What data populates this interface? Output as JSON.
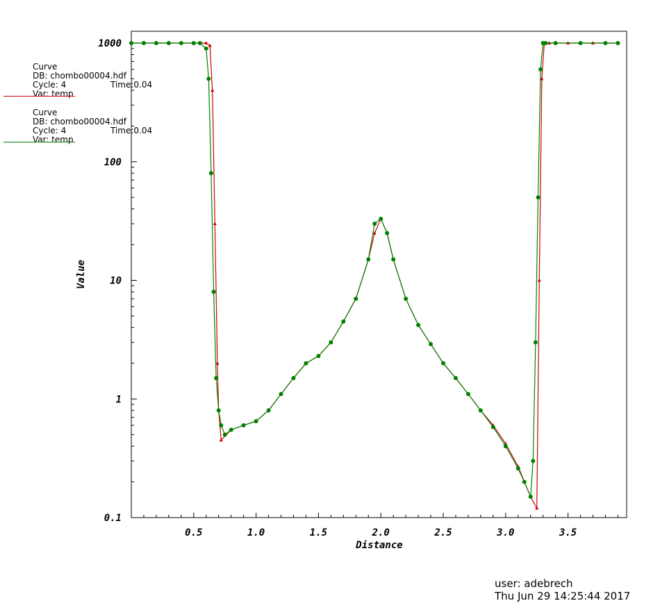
{
  "legend": [
    {
      "title": "Curve",
      "db": "DB: chombo00004.hdf",
      "cycle": "Cycle: 4",
      "time": "Time:0.04",
      "var": "Var: temp",
      "color": "#cc0000"
    },
    {
      "title": "Curve",
      "db": "DB: chombo00004.hdf",
      "cycle": "Cycle: 4",
      "time": "Time:0.04",
      "var": "Var: temp",
      "color": "#008000"
    }
  ],
  "footer": {
    "user": "user: adebrech",
    "date": "Thu Jun 29 14:25:44 2017"
  },
  "chart_data": {
    "type": "line",
    "title": "",
    "xlabel": "Distance",
    "ylabel": "Value",
    "xlim": [
      0.0,
      3.97
    ],
    "ylim": [
      0.1,
      1200
    ],
    "yscale": "log",
    "xticks": [
      0.5,
      1.0,
      1.5,
      2.0,
      2.5,
      3.0,
      3.5
    ],
    "xtick_labels": [
      "0.5",
      "1.0",
      "1.5",
      "2.0",
      "2.5",
      "3.0",
      "3.5"
    ],
    "yticks": [
      0.1,
      1,
      10,
      100,
      1000
    ],
    "ytick_labels": [
      "0.1",
      "1",
      "10",
      "100",
      "1000"
    ],
    "grid": false,
    "series": [
      {
        "color": "#cc0000",
        "marker": "triangle",
        "x": [
          0.0,
          0.1,
          0.2,
          0.3,
          0.4,
          0.5,
          0.6,
          0.63,
          0.65,
          0.67,
          0.69,
          0.7,
          0.72,
          0.8,
          0.9,
          1.0,
          1.1,
          1.2,
          1.3,
          1.4,
          1.5,
          1.6,
          1.7,
          1.8,
          1.9,
          1.95,
          2.0,
          2.05,
          2.1,
          2.2,
          2.3,
          2.4,
          2.5,
          2.6,
          2.7,
          2.8,
          2.9,
          3.0,
          3.1,
          3.2,
          3.25,
          3.27,
          3.29,
          3.31,
          3.35,
          3.5,
          3.7,
          3.9
        ],
        "y": [
          1000,
          1000,
          1000,
          1000,
          1000,
          1000,
          1000,
          950,
          400,
          30,
          2,
          0.8,
          0.45,
          0.55,
          0.6,
          0.65,
          0.8,
          1.1,
          1.5,
          2.0,
          2.3,
          3.0,
          4.5,
          7.0,
          15,
          25,
          33,
          25,
          15,
          7.0,
          4.2,
          2.9,
          2.0,
          1.5,
          1.1,
          0.8,
          0.6,
          0.42,
          0.27,
          0.15,
          0.12,
          10,
          500,
          1000,
          1000,
          1000,
          1000,
          1000
        ]
      },
      {
        "color": "#008000",
        "marker": "circle",
        "x": [
          0.0,
          0.1,
          0.2,
          0.3,
          0.4,
          0.5,
          0.55,
          0.6,
          0.62,
          0.64,
          0.66,
          0.68,
          0.7,
          0.72,
          0.75,
          0.8,
          0.9,
          1.0,
          1.1,
          1.2,
          1.3,
          1.4,
          1.5,
          1.6,
          1.7,
          1.8,
          1.9,
          1.95,
          2.0,
          2.05,
          2.1,
          2.2,
          2.3,
          2.4,
          2.5,
          2.6,
          2.7,
          2.8,
          2.9,
          3.0,
          3.1,
          3.15,
          3.2,
          3.22,
          3.24,
          3.26,
          3.28,
          3.3,
          3.32,
          3.4,
          3.6,
          3.8,
          3.9
        ],
        "y": [
          1000,
          1000,
          1000,
          1000,
          1000,
          1000,
          1000,
          900,
          500,
          80,
          8,
          1.5,
          0.8,
          0.6,
          0.5,
          0.55,
          0.6,
          0.65,
          0.8,
          1.1,
          1.5,
          2.0,
          2.3,
          3.0,
          4.5,
          7.0,
          15,
          30,
          33,
          25,
          15,
          7.0,
          4.2,
          2.9,
          2.0,
          1.5,
          1.1,
          0.8,
          0.58,
          0.4,
          0.26,
          0.2,
          0.15,
          0.3,
          3,
          50,
          600,
          1000,
          1000,
          1000,
          1000,
          1000,
          1000
        ]
      }
    ]
  }
}
